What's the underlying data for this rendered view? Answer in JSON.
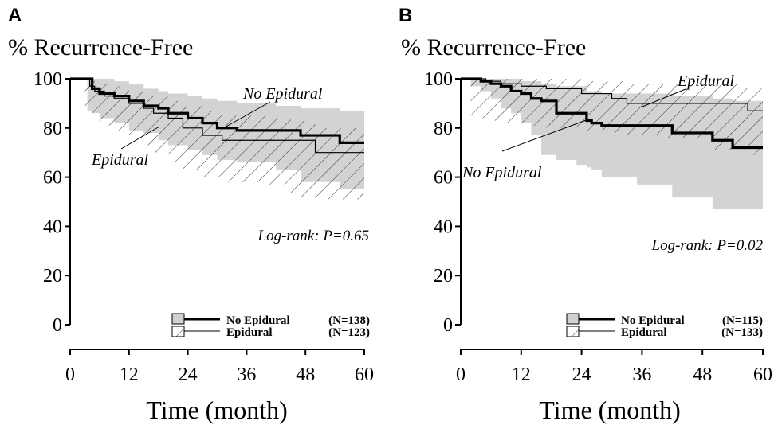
{
  "chart_data": [
    {
      "type": "line",
      "panel_letter": "A",
      "title": "% Recurrence-Free",
      "xlabel": "Time (month)",
      "ylabel": "",
      "xlim": [
        0,
        60
      ],
      "ylim": [
        0,
        100
      ],
      "xticks": [
        0,
        12,
        24,
        36,
        48,
        60
      ],
      "yticks": [
        0,
        20,
        40,
        60,
        80,
        100
      ],
      "annotation": "Log-rank: P=0.65",
      "series": [
        {
          "name": "No Epidural",
          "n_label": "(N=138)",
          "style": "thick",
          "label": "No Epidural",
          "x": [
            0,
            3.5,
            4.5,
            6,
            9,
            12,
            15,
            18,
            20,
            24,
            27,
            30,
            34,
            42,
            47,
            55,
            60
          ],
          "y": [
            100,
            100,
            96,
            94,
            93,
            91,
            89,
            88,
            86,
            84,
            82,
            80,
            79,
            79,
            77,
            74,
            74
          ],
          "ci_upper": [
            100,
            100,
            100,
            100,
            99,
            98,
            96,
            95,
            94,
            93,
            92,
            91,
            90,
            89,
            88,
            87,
            87
          ],
          "ci_lower": [
            100,
            100,
            87,
            86,
            84,
            82,
            79,
            78,
            75,
            73,
            71,
            69,
            67,
            66,
            63,
            58,
            55
          ]
        },
        {
          "name": "Epidural",
          "n_label": "(N=123)",
          "style": "thin",
          "label": "Epidural",
          "x": [
            0,
            3,
            4,
            5,
            7,
            9,
            12,
            15,
            17,
            20,
            23,
            27,
            31,
            40,
            45,
            50,
            60
          ],
          "y": [
            100,
            100,
            97,
            95,
            93,
            92,
            90,
            88,
            86,
            84,
            80,
            77,
            75,
            75,
            75,
            70,
            70
          ],
          "ci_upper": [
            100,
            100,
            100,
            99,
            98,
            97,
            95,
            94,
            93,
            91,
            89,
            87,
            85,
            84,
            83,
            80,
            80
          ],
          "ci_lower": [
            100,
            100,
            89,
            86,
            83,
            81,
            79,
            76,
            73,
            70,
            66,
            63,
            60,
            58,
            57,
            52,
            51
          ]
        }
      ]
    },
    {
      "type": "line",
      "panel_letter": "B",
      "title": "% Recurrence-Free",
      "xlabel": "Time (month)",
      "ylabel": "",
      "xlim": [
        0,
        60
      ],
      "ylim": [
        0,
        100
      ],
      "xticks": [
        0,
        12,
        24,
        36,
        48,
        60
      ],
      "yticks": [
        0,
        20,
        40,
        60,
        80,
        100
      ],
      "annotation": "Log-rank: P=0.02",
      "series": [
        {
          "name": "No Epidural",
          "n_label": "(N=115)",
          "style": "thick",
          "label": "No Epidural",
          "x": [
            0,
            2,
            4,
            6,
            8,
            10,
            12,
            14,
            16,
            19,
            23,
            25,
            26,
            28,
            35,
            42,
            50,
            54,
            60
          ],
          "y": [
            100,
            100,
            99,
            98,
            97,
            95,
            94,
            92,
            91,
            86,
            86,
            83,
            82,
            81,
            81,
            78,
            75,
            72,
            72
          ],
          "ci_upper": [
            100,
            100,
            100,
            100,
            100,
            100,
            99,
            99,
            98,
            97,
            97,
            95,
            95,
            94,
            94,
            93,
            92,
            91,
            91
          ],
          "ci_lower": [
            100,
            100,
            97,
            95,
            92,
            88,
            86,
            82,
            77,
            69,
            67,
            65,
            64,
            63,
            60,
            57,
            52,
            47,
            47
          ]
        },
        {
          "name": "Epidural",
          "n_label": "(N=133)",
          "style": "thin",
          "label": "Epidural",
          "x": [
            0,
            2,
            5,
            8,
            12,
            17,
            24,
            30,
            33,
            40,
            50,
            57,
            60
          ],
          "y": [
            100,
            100,
            99,
            98,
            97,
            96,
            94,
            92,
            90,
            90,
            90,
            87,
            87
          ],
          "ci_upper": [
            100,
            100,
            100,
            100,
            100,
            100,
            99,
            99,
            98,
            98,
            98,
            96,
            96
          ],
          "ci_lower": [
            100,
            100,
            84,
            83,
            82,
            81,
            80,
            79,
            78,
            77,
            76,
            71,
            69
          ]
        }
      ]
    }
  ]
}
